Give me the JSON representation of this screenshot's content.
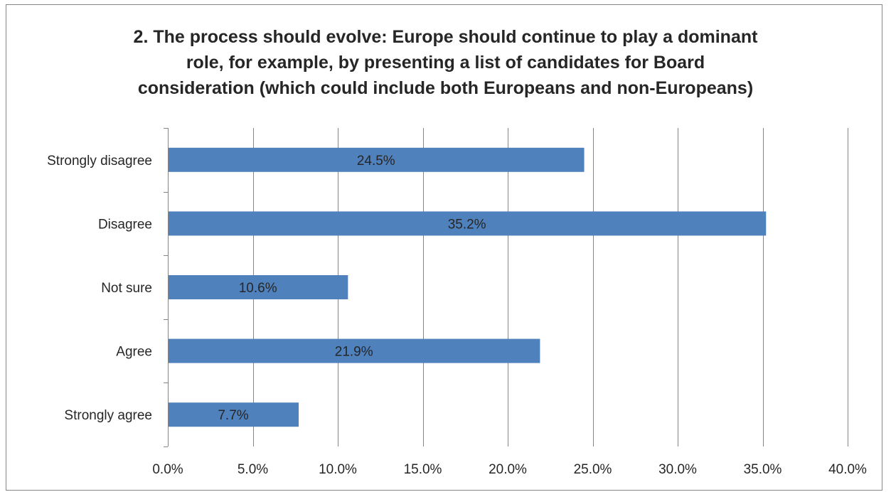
{
  "chart_data": {
    "type": "bar",
    "orientation": "horizontal",
    "title_lines": [
      "2. The process should evolve: Europe should continue to play a dominant",
      "role, for example, by presenting a list of candidates for Board",
      "consideration (which could include both Europeans and non-Europeans)"
    ],
    "categories": [
      "Strongly disagree",
      "Disagree",
      "Not sure",
      "Agree",
      "Strongly agree"
    ],
    "values": [
      24.5,
      35.2,
      10.6,
      21.9,
      7.7
    ],
    "value_labels": [
      "24.5%",
      "35.2%",
      "10.6%",
      "21.9%",
      "7.7%"
    ],
    "xlim": [
      0,
      40
    ],
    "x_ticks": [
      0,
      5,
      10,
      15,
      20,
      25,
      30,
      35,
      40
    ],
    "x_tick_labels": [
      "0.0%",
      "5.0%",
      "10.0%",
      "15.0%",
      "20.0%",
      "25.0%",
      "30.0%",
      "35.0%",
      "40.0%"
    ],
    "bar_color": "#4f81bd",
    "gridlines": "vertical",
    "legend": "none"
  }
}
